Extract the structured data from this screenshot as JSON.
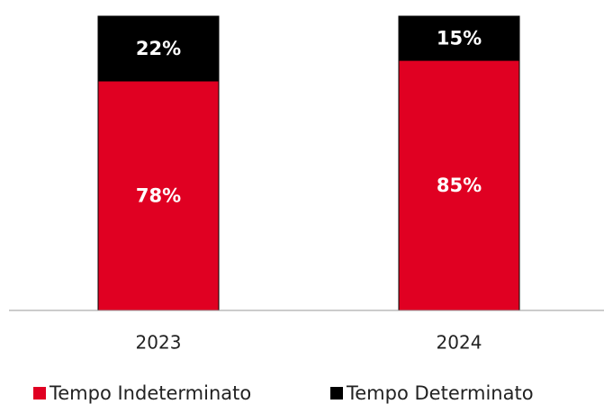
{
  "chart_data": {
    "type": "stacked_bar",
    "categories": [
      "2023",
      "2024"
    ],
    "series": [
      {
        "name": "Tempo Indeterminato",
        "color": "#e00022",
        "values": [
          78,
          85
        ],
        "value_labels": [
          "78%",
          "85%"
        ]
      },
      {
        "name": "Tempo Determinato",
        "color": "#000000",
        "values": [
          22,
          15
        ],
        "value_labels": [
          "22%",
          "15%"
        ]
      }
    ],
    "ylim": [
      0,
      100
    ],
    "legend": "bottom"
  }
}
